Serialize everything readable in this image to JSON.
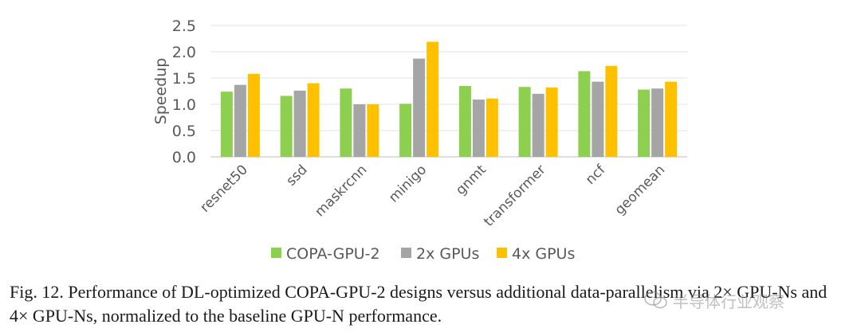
{
  "chart_data": {
    "type": "bar",
    "title": "",
    "xlabel": "",
    "ylabel": "Speedup",
    "ylim": [
      0,
      2.5
    ],
    "yticks": [
      "0.0",
      "0.5",
      "1.0",
      "1.5",
      "2.0",
      "2.5"
    ],
    "grid": true,
    "legend_position": "bottom",
    "categories": [
      "resnet50",
      "ssd",
      "maskrcnn",
      "minigo",
      "gnmt",
      "transformer",
      "ncf",
      "geomean"
    ],
    "series": [
      {
        "name": "COPA-GPU-2",
        "color": "#8dcf4f",
        "values": [
          1.24,
          1.16,
          1.3,
          1.01,
          1.35,
          1.33,
          1.63,
          1.28
        ]
      },
      {
        "name": "2x GPUs",
        "color": "#a5a5a5",
        "values": [
          1.37,
          1.26,
          1.0,
          1.87,
          1.09,
          1.2,
          1.43,
          1.3
        ]
      },
      {
        "name": "4x GPUs",
        "color": "#ffc000",
        "values": [
          1.58,
          1.4,
          1.0,
          2.19,
          1.11,
          1.32,
          1.73,
          1.43
        ]
      }
    ]
  },
  "caption": {
    "text": "Fig. 12.  Performance of DL-optimized COPA-GPU-2 designs versus additional data-parallelism via 2× GPU-Ns and 4× GPU-Ns, normalized to the baseline GPU-N performance."
  },
  "watermark": {
    "text": "半导体行业观察",
    "icon": "wechat-logo-icon"
  }
}
